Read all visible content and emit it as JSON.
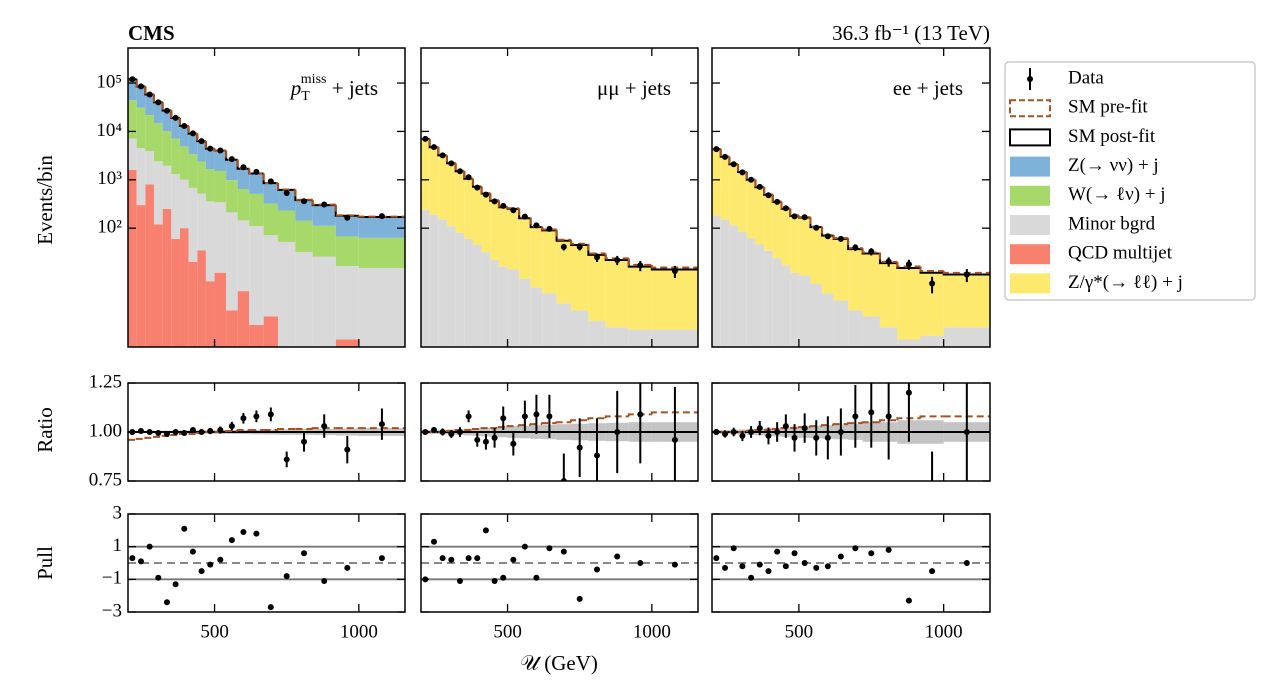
{
  "chart_data": {
    "type": "histogram",
    "title": "CMS",
    "subtitle": "36.3 fb⁻¹ (13 TeV)",
    "ylabel": "Events/bin",
    "xlabel": "𝒰 (GeV)",
    "ylog": true,
    "ylim": [
      0.35,
      530000
    ],
    "yticks": [
      {
        "value": 100,
        "label": "10²"
      },
      {
        "value": 1000,
        "label": "10³"
      },
      {
        "value": 10000,
        "label": "10⁴"
      },
      {
        "value": 100000,
        "label": "10⁵"
      }
    ],
    "xlim": [
      200,
      1160
    ],
    "xticks": [
      500,
      1000
    ],
    "bins": [
      200,
      230,
      260,
      290,
      320,
      350,
      380,
      410,
      440,
      470,
      500,
      540,
      580,
      620,
      670,
      720,
      780,
      840,
      920,
      1000,
      1160
    ],
    "legend": {
      "position": "outside-right",
      "data": {
        "name": "Data",
        "color": "#000000"
      },
      "prefit": {
        "name": "SM pre-fit",
        "color": "#a9501f"
      },
      "postfit": {
        "name": "SM post-fit",
        "color": "#000000"
      }
    },
    "components": [
      {
        "name": "Z(→ νν) + j",
        "color": "#7fb2d9"
      },
      {
        "name": "W(→ ℓν) + j",
        "color": "#a6d86a"
      },
      {
        "name": "Minor bgrd",
        "color": "#d9d9d9"
      },
      {
        "name": "QCD multijet",
        "color": "#f7806e"
      },
      {
        "name": "Z/γ*(→ ℓℓ) + j",
        "color": "#fde96e"
      }
    ],
    "ratio": {
      "ylabel": "Ratio",
      "ylim": [
        0.75,
        1.25
      ],
      "yticks": [
        0.75,
        {
          "value": 1,
          "label": "1.00"
        },
        1.25
      ],
      "reference": 1,
      "band_color": "#c4c4c4"
    },
    "pull": {
      "ylabel": "Pull",
      "ylim": [
        -3,
        3
      ],
      "yticks": [
        {
          "value": -3,
          "label": "−3"
        },
        {
          "value": -1,
          "label": "−1"
        },
        1,
        3
      ],
      "lines": [
        {
          "value": -1,
          "dash": false
        },
        {
          "value": 0,
          "dash": true
        },
        {
          "value": 1,
          "dash": false
        }
      ]
    },
    "channels": [
      {
        "label": "p",
        "label_sub": "T",
        "label_sup": "miss",
        "label_rest": " + jets",
        "series": [
          {
            "name": "QCD multijet",
            "values": [
              1600,
              300,
              800,
              120,
              250,
              60,
              100,
              20,
              35,
              8,
              12,
              2,
              5,
              1,
              1.5,
              0,
              0,
              0,
              0.5,
              0
            ]
          },
          {
            "name": "Minor bgrd",
            "values": [
              5500,
              4200,
              3100,
              2300,
              1700,
              1250,
              900,
              660,
              480,
              350,
              330,
              210,
              140,
              110,
              70,
              52,
              32,
              26,
              16,
              15
            ]
          },
          {
            "name": "W(→ ℓν) + j",
            "values": [
              37000,
              26500,
              17800,
              12400,
              8200,
              5800,
              3900,
              2700,
              1880,
              1300,
              1180,
              770,
              500,
              400,
              250,
              180,
              110,
              86,
              51,
              48
            ]
          },
          {
            "name": "Z(→ νν) + j",
            "values": [
              75900,
              54000,
              36300,
              25180,
              16850,
              11890,
              8100,
              5620,
              3905,
              2742,
              2478,
              1618,
              1050,
              839,
              530,
              388,
              238,
              188,
              113,
              107
            ]
          }
        ],
        "prefit": [
          115200,
          82000,
          56300,
          39000,
          26500,
          18700,
          12900,
          8910,
          6270,
          4400,
          4000,
          2610,
          1720,
          1360,
          860,
          629,
          386,
          306,
          184,
          173
        ],
        "data": [
          120000,
          85400,
          58000,
          39800,
          26700,
          19000,
          12940,
          9090,
          6300,
          4420,
          4040,
          2680,
          1820,
          1460,
          930,
          533,
          361,
          309,
          164,
          177
        ],
        "data_errors": [
          350,
          290,
          240,
          200,
          165,
          140,
          115,
          95,
          80,
          67,
          64,
          52,
          43,
          38,
          31,
          23,
          19,
          18,
          13,
          13
        ],
        "ratio": [
          1,
          1.005,
          1,
          0.995,
          0.99,
          1,
          0.995,
          1.01,
          1,
          1.005,
          1.01,
          1.03,
          1.07,
          1.08,
          1.09,
          0.86,
          0.95,
          1.03,
          0.91,
          1.04
        ],
        "ratio_errors": [
          0.005,
          0.005,
          0.006,
          0.007,
          0.008,
          0.01,
          0.01,
          0.012,
          0.014,
          0.016,
          0.018,
          0.022,
          0.027,
          0.03,
          0.035,
          0.04,
          0.05,
          0.06,
          0.07,
          0.08
        ],
        "prefit_ratio": [
          0.96,
          0.965,
          0.97,
          0.975,
          0.98,
          0.985,
          0.99,
          0.99,
          0.995,
          1,
          1,
          1.005,
          1.01,
          1.01,
          1.01,
          1.015,
          1.015,
          1.02,
          1.02,
          1.02
        ],
        "band": [
          0.006,
          0.006,
          0.006,
          0.006,
          0.007,
          0.007,
          0.008,
          0.008,
          0.009,
          0.009,
          0.01,
          0.01,
          0.011,
          0.012,
          0.013,
          0.014,
          0.015,
          0.016,
          0.018,
          0.02
        ],
        "pull": [
          0.3,
          0.1,
          1.0,
          -0.9,
          -2.4,
          -1.3,
          2.1,
          0.7,
          -0.5,
          -0.1,
          0.2,
          1.4,
          1.9,
          1.8,
          -2.7,
          -0.8,
          0.6,
          -1.1,
          -0.3,
          0.3
        ]
      },
      {
        "label": "μμ + jets",
        "series": [
          {
            "name": "Minor bgrd",
            "values": [
              240,
              190,
              150,
              110,
              80,
              60,
              45,
              32,
              22,
              16,
              14,
              9,
              6,
              4.5,
              2.8,
              2,
              1.2,
              0.9,
              0.8,
              0.8
            ]
          },
          {
            "name": "Z/γ*(→ ℓℓ) + j",
            "values": [
              6760,
              4510,
              3050,
              2090,
              1420,
              990,
              675,
              488,
              348,
              254,
              236,
              151,
              99,
              85.5,
              52.2,
              43,
              26.8,
              21.1,
              15.2,
              13.2
            ]
          }
        ],
        "prefit": [
          7000,
          4700,
          3200,
          2210,
          1520,
          1060,
          731,
          530,
          377,
          277,
          258,
          166,
          109,
          94.1,
          57.8,
          47.7,
          30,
          23.8,
          17.4,
          15.4
        ],
        "data": [
          7000,
          4750,
          3200,
          2180,
          1500,
          1130,
          690,
          494,
          359,
          289,
          235,
          173,
          114,
          97,
          41,
          41,
          25,
          22,
          17,
          13
        ],
        "data_errors": [
          84,
          69,
          57,
          47,
          39,
          34,
          26,
          22,
          19,
          17,
          15,
          13,
          11,
          10,
          6.4,
          6.4,
          5,
          4.7,
          4.1,
          3.6
        ],
        "ratio": [
          1,
          1.01,
          1,
          0.99,
          1,
          1.08,
          0.96,
          0.95,
          0.97,
          1.07,
          0.94,
          1.08,
          1.09,
          1.08,
          0.75,
          0.92,
          0.88,
          1,
          1.09,
          0.96
        ],
        "ratio_errors": [
          0.012,
          0.015,
          0.018,
          0.02,
          0.025,
          0.03,
          0.035,
          0.04,
          0.05,
          0.06,
          0.06,
          0.08,
          0.1,
          0.11,
          0.14,
          0.15,
          0.19,
          0.21,
          0.25,
          0.27
        ],
        "prefit_ratio": [
          1,
          1,
          1,
          1.005,
          1.01,
          1.01,
          1.015,
          1.02,
          1.02,
          1.025,
          1.03,
          1.035,
          1.04,
          1.045,
          1.05,
          1.06,
          1.07,
          1.08,
          1.09,
          1.1
        ],
        "band": [
          0.01,
          0.01,
          0.012,
          0.013,
          0.015,
          0.017,
          0.02,
          0.022,
          0.025,
          0.027,
          0.03,
          0.032,
          0.035,
          0.037,
          0.04,
          0.042,
          0.045,
          0.047,
          0.05,
          0.05
        ],
        "pull": [
          -1.0,
          1.3,
          0.3,
          0.2,
          -1.1,
          0.3,
          0.3,
          2.0,
          -1.1,
          -0.9,
          0.2,
          1.0,
          -0.9,
          0.9,
          0.7,
          -2.2,
          -0.4,
          0.4,
          0,
          -0.1
        ]
      },
      {
        "label": "ee + jets",
        "series": [
          {
            "name": "Minor bgrd",
            "values": [
              185,
              150,
              115,
              85,
              62,
              46,
              34,
              24,
              17,
              12,
              10.5,
              7,
              4.5,
              3.2,
              2,
              1.5,
              0.9,
              0.5,
              0.6,
              0.9
            ]
          },
          {
            "name": "Z/γ*(→ ℓℓ) + j",
            "values": [
              4115,
              2850,
              1985,
              1365,
              938,
              654,
              456,
              326,
              233,
              168,
              154.5,
              98,
              65.5,
              56.8,
              35,
              28.5,
              18.1,
              14.5,
              11.4,
              10.1
            ]
          }
        ],
        "prefit": [
          4300,
          3000,
          2100,
          1450,
          1005,
          707,
          495,
          355,
          255,
          184,
          169,
          108,
          72.5,
          62.4,
          38.7,
          31.5,
          20.1,
          16.1,
          13,
          11.9
        ],
        "data": [
          4300,
          2970,
          2100,
          1420,
          1000,
          714,
          480,
          350,
          258,
          175,
          168,
          102,
          68,
          60,
          40,
          33,
          20.5,
          18,
          7.2,
          11
        ],
        "data_errors": [
          66,
          55,
          46,
          38,
          32,
          27,
          22,
          19,
          16,
          13,
          13,
          10,
          8.2,
          7.7,
          6.3,
          5.7,
          4.5,
          4.2,
          2.7,
          3.3
        ],
        "ratio": [
          1,
          0.99,
          1,
          0.98,
          1,
          1.02,
          0.98,
          1,
          1.03,
          0.97,
          1.02,
          0.97,
          0.97,
          1,
          1.08,
          1.1,
          1.08,
          1.2,
          0.6,
          1
        ],
        "ratio_errors": [
          0.015,
          0.018,
          0.022,
          0.026,
          0.03,
          0.036,
          0.043,
          0.05,
          0.06,
          0.07,
          0.075,
          0.09,
          0.11,
          0.12,
          0.16,
          0.18,
          0.22,
          0.25,
          0.3,
          0.3
        ],
        "prefit_ratio": [
          1,
          1,
          1,
          1,
          1.005,
          1.01,
          1.01,
          1.015,
          1.02,
          1.02,
          1.025,
          1.03,
          1.035,
          1.04,
          1.045,
          1.05,
          1.06,
          1.07,
          1.08,
          1.08
        ],
        "band": [
          0.01,
          0.01,
          0.012,
          0.013,
          0.015,
          0.017,
          0.02,
          0.022,
          0.025,
          0.027,
          0.03,
          0.032,
          0.035,
          0.037,
          0.04,
          0.05,
          0.05,
          0.06,
          0.06,
          0.05
        ],
        "pull": [
          0.3,
          -0.3,
          0.9,
          -0.2,
          -0.9,
          -0.1,
          -0.5,
          0.7,
          -0.2,
          0.6,
          0,
          -0.3,
          -0.2,
          0.4,
          0.9,
          0.6,
          0.8,
          -2.3,
          -0.5,
          0
        ]
      }
    ]
  }
}
